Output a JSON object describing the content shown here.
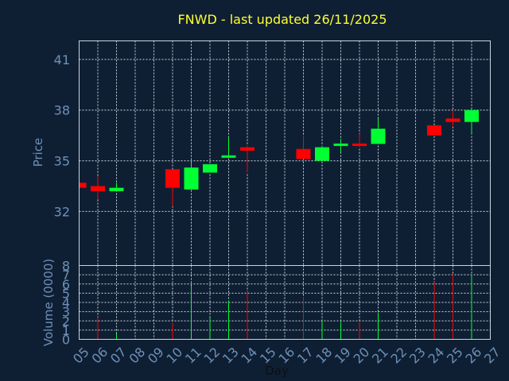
{
  "chart_data": {
    "type": "candlestick",
    "title": "FNWD - last updated 26/11/2025",
    "xlabel": "Day",
    "ylabel_price": "Price",
    "ylabel_volume": "Volume (0000)",
    "x_ticks": [
      "05",
      "06",
      "07",
      "08",
      "09",
      "10",
      "11",
      "12",
      "13",
      "14",
      "15",
      "16",
      "17",
      "18",
      "19",
      "20",
      "21",
      "22",
      "23",
      "24",
      "25",
      "26",
      "27"
    ],
    "price_ticks": [
      32,
      35,
      38,
      41
    ],
    "price_ylim": [
      28.8,
      42.1
    ],
    "volume_ticks": [
      0,
      1,
      2,
      3,
      4,
      5,
      6,
      7,
      8
    ],
    "volume_ylim": [
      0,
      8
    ],
    "colors": {
      "up": "#00ff33",
      "down": "#ff0000",
      "background": "#0f1f33",
      "grid": "#c9d3dd",
      "text": "#6d90b8",
      "title": "#ffff33"
    },
    "candles": [
      {
        "day": "05",
        "open": 33.7,
        "high": 33.8,
        "low": 33.4,
        "close": 33.4,
        "volume": 0.0
      },
      {
        "day": "06",
        "open": 33.5,
        "high": 34.1,
        "low": 32.7,
        "close": 33.2,
        "volume": 2.4
      },
      {
        "day": "07",
        "open": 33.2,
        "high": 33.7,
        "low": 33.2,
        "close": 33.4,
        "volume": 0.6
      },
      {
        "day": "10",
        "open": 34.5,
        "high": 34.5,
        "low": 32.3,
        "close": 33.4,
        "volume": 1.8
      },
      {
        "day": "11",
        "open": 33.3,
        "high": 34.9,
        "low": 33.3,
        "close": 34.6,
        "volume": 5.8
      },
      {
        "day": "12",
        "open": 34.3,
        "high": 34.8,
        "low": 34.3,
        "close": 34.8,
        "volume": 2.3
      },
      {
        "day": "13",
        "open": 35.2,
        "high": 36.4,
        "low": 35.2,
        "close": 35.3,
        "volume": 4.2
      },
      {
        "day": "14",
        "open": 35.8,
        "high": 35.9,
        "low": 34.3,
        "close": 35.6,
        "volume": 5.2
      },
      {
        "day": "17",
        "open": 35.7,
        "high": 36.5,
        "low": 35.1,
        "close": 35.1,
        "volume": 4.6
      },
      {
        "day": "18",
        "open": 35.0,
        "high": 35.9,
        "low": 35.0,
        "close": 35.8,
        "volume": 2.0
      },
      {
        "day": "19",
        "open": 35.9,
        "high": 36.3,
        "low": 35.5,
        "close": 36.0,
        "volume": 1.9
      },
      {
        "day": "20",
        "open": 36.0,
        "high": 36.6,
        "low": 35.8,
        "close": 35.9,
        "volume": 1.9
      },
      {
        "day": "21",
        "open": 36.0,
        "high": 37.5,
        "low": 36.0,
        "close": 36.9,
        "volume": 2.9
      },
      {
        "day": "24",
        "open": 37.1,
        "high": 37.1,
        "low": 36.5,
        "close": 36.5,
        "volume": 6.2
      },
      {
        "day": "25",
        "open": 37.5,
        "high": 38.0,
        "low": 37.0,
        "close": 37.3,
        "volume": 7.1
      },
      {
        "day": "26",
        "open": 37.3,
        "high": 38.1,
        "low": 36.6,
        "close": 38.0,
        "volume": 7.0
      }
    ]
  }
}
